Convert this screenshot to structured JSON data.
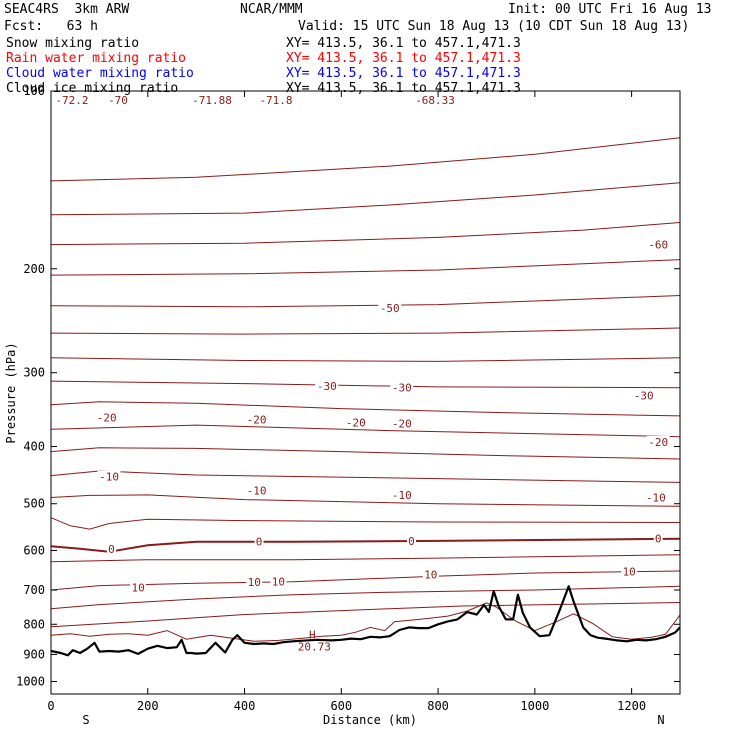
{
  "header": {
    "model": "SEAC4RS  3km ARW",
    "org": "NCAR/MMM",
    "init": "Init: 00 UTC Fri 16 Aug 13",
    "fcst": "Fcst:   63 h",
    "valid": "Valid: 15 UTC Sun 18 Aug 13 (10 CDT Sun 18 Aug 13)"
  },
  "fields": [
    {
      "name": "Snow mixing ratio",
      "xy": "XY= 413.5, 36.1 to 457.1,471.3",
      "color": "#000000"
    },
    {
      "name": "Rain water mixing ratio",
      "xy": "XY= 413.5, 36.1 to 457.1,471.3",
      "color": "#ff0000"
    },
    {
      "name": "Cloud water mixing ratio",
      "xy": "XY= 413.5, 36.1 to 457.1,471.3",
      "color": "#0000ff"
    },
    {
      "name": "Cloud ice mixing ratio",
      "xy": "XY= 413.5, 36.1 to 457.1,471.3",
      "color": "#000000"
    }
  ],
  "colors": {
    "isotherm": "#8b1a1a",
    "zero_isotherm": "#8b1a1a",
    "terrain": "#000000",
    "axis": "#000000"
  },
  "chart_data": {
    "type": "line",
    "xlabel": "Distance (km)",
    "ylabel": "Pressure (hPa)",
    "xlim": [
      0,
      1300
    ],
    "ylim": [
      1050,
      100
    ],
    "yscale": "log",
    "x_ticks": [
      "0",
      "200",
      "400",
      "600",
      "800",
      "1000",
      "1200"
    ],
    "y_ticks": [
      "100",
      "200",
      "300",
      "400",
      "500",
      "600",
      "700",
      "800",
      "900",
      "1000"
    ],
    "x_end_labels": {
      "left": "S",
      "right": "N"
    },
    "high_marker": {
      "symbol": "H",
      "value": "20.73",
      "x": 540,
      "p": 833
    },
    "top_labels": [
      "-72.2",
      "-70",
      "-71.88",
      "-71.8",
      "-68.33"
    ],
    "contour_labels": [
      {
        "text": "-60",
        "x": 1255,
        "p": 182
      },
      {
        "text": "-50",
        "x": 700,
        "p": 233
      },
      {
        "text": "-30",
        "x": 570,
        "p": 316
      },
      {
        "text": "-30",
        "x": 725,
        "p": 318
      },
      {
        "text": "-30",
        "x": 1225,
        "p": 328
      },
      {
        "text": "-20",
        "x": 115,
        "p": 357
      },
      {
        "text": "-20",
        "x": 425,
        "p": 360
      },
      {
        "text": "-20",
        "x": 630,
        "p": 364
      },
      {
        "text": "-20",
        "x": 725,
        "p": 366
      },
      {
        "text": "-20",
        "x": 1255,
        "p": 393
      },
      {
        "text": "-10",
        "x": 120,
        "p": 450
      },
      {
        "text": "-10",
        "x": 425,
        "p": 475
      },
      {
        "text": "-10",
        "x": 725,
        "p": 483
      },
      {
        "text": "-10",
        "x": 1250,
        "p": 488
      },
      {
        "text": "0",
        "x": 125,
        "p": 597
      },
      {
        "text": "0",
        "x": 430,
        "p": 579
      },
      {
        "text": "0",
        "x": 745,
        "p": 578
      },
      {
        "text": "0",
        "x": 1255,
        "p": 573
      },
      {
        "text": "10",
        "x": 180,
        "p": 693
      },
      {
        "text": "10",
        "x": 420,
        "p": 679
      },
      {
        "text": "10",
        "x": 470,
        "p": 677
      },
      {
        "text": "10",
        "x": 785,
        "p": 659
      },
      {
        "text": "10",
        "x": 1195,
        "p": 651
      }
    ],
    "isotherms": [
      {
        "level": "-70",
        "x": [
          0,
          300,
          700,
          1000,
          1300
        ],
        "p": [
          142,
          140,
          134,
          128,
          120
        ]
      },
      {
        "level": "-65",
        "x": [
          0,
          400,
          700,
          1000,
          1300
        ],
        "p": [
          162,
          161,
          156,
          150,
          143
        ]
      },
      {
        "level": "-60",
        "x": [
          0,
          400,
          800,
          1100,
          1300
        ],
        "p": [
          182,
          181,
          177,
          172,
          167
        ]
      },
      {
        "level": "-55",
        "x": [
          0,
          400,
          800,
          1300
        ],
        "p": [
          205,
          204,
          201,
          193
        ]
      },
      {
        "level": "-50",
        "x": [
          0,
          400,
          800,
          1300
        ],
        "p": [
          231,
          232,
          230,
          222
        ]
      },
      {
        "level": "-45",
        "x": [
          0,
          400,
          800,
          1300
        ],
        "p": [
          257,
          258,
          257,
          252
        ]
      },
      {
        "level": "-40",
        "x": [
          0,
          400,
          800,
          1300
        ],
        "p": [
          283,
          286,
          287,
          283
        ]
      },
      {
        "level": "-35",
        "x": [
          0,
          400,
          800,
          1300
        ],
        "p": [
          310,
          313,
          317,
          318
        ]
      },
      {
        "level": "-30",
        "x": [
          0,
          100,
          300,
          600,
          900,
          1300
        ],
        "p": [
          340,
          336,
          338,
          345,
          350,
          355
        ]
      },
      {
        "level": "-25",
        "x": [
          0,
          300,
          700,
          1300
        ],
        "p": [
          374,
          368,
          376,
          385
        ]
      },
      {
        "level": "-20",
        "x": [
          0,
          100,
          300,
          600,
          900,
          1300
        ],
        "p": [
          408,
          402,
          403,
          408,
          414,
          420
        ]
      },
      {
        "level": "-15",
        "x": [
          0,
          100,
          300,
          700,
          1300
        ],
        "p": [
          448,
          440,
          447,
          452,
          460
        ]
      },
      {
        "level": "-10",
        "x": [
          0,
          80,
          200,
          400,
          800,
          1300
        ],
        "p": [
          488,
          484,
          483,
          492,
          500,
          505
        ]
      },
      {
        "level": "-5",
        "x": [
          0,
          40,
          80,
          120,
          200,
          400,
          800,
          1300
        ],
        "p": [
          528,
          545,
          552,
          540,
          531,
          534,
          537,
          538
        ]
      },
      {
        "level": "0",
        "x": [
          0,
          60,
          120,
          200,
          300,
          500,
          800,
          1100,
          1300
        ],
        "p": [
          590,
          596,
          603,
          588,
          580,
          580,
          578,
          575,
          573
        ],
        "bold": true
      },
      {
        "level": "5",
        "x": [
          0,
          200,
          500,
          800,
          1300
        ],
        "p": [
          627,
          622,
          622,
          618,
          610
        ]
      },
      {
        "level": "10",
        "x": [
          0,
          100,
          300,
          500,
          800,
          1000,
          1300
        ],
        "p": [
          700,
          688,
          682,
          678,
          663,
          655,
          650
        ]
      },
      {
        "level": "15",
        "x": [
          0,
          100,
          300,
          500,
          700,
          1000,
          1300
        ],
        "p": [
          753,
          741,
          725,
          713,
          706,
          700,
          690
        ]
      },
      {
        "level": "20",
        "x": [
          0,
          200,
          400,
          700,
          850,
          1300
        ],
        "p": [
          808,
          790,
          770,
          753,
          745,
          735
        ]
      }
    ],
    "surface_isotherm": {
      "level": "25",
      "x": [
        0,
        40,
        80,
        120,
        160,
        200,
        240,
        280,
        330,
        380,
        420,
        470,
        520,
        560,
        600,
        630,
        660,
        690,
        710,
        740,
        780,
        820,
        860,
        900,
        920,
        960,
        1000,
        1040,
        1080,
        1120,
        1160,
        1200,
        1240,
        1270,
        1300
      ],
      "p": [
        835,
        830,
        838,
        832,
        830,
        835,
        820,
        848,
        835,
        846,
        855,
        852,
        845,
        838,
        835,
        825,
        810,
        820,
        792,
        788,
        782,
        775,
        760,
        736,
        748,
        790,
        820,
        795,
        768,
        798,
        840,
        848,
        842,
        832,
        772
      ]
    },
    "terrain": {
      "x": [
        0,
        20,
        35,
        45,
        60,
        75,
        90,
        100,
        120,
        140,
        160,
        180,
        200,
        220,
        240,
        260,
        270,
        280,
        290,
        300,
        320,
        340,
        360,
        375,
        385,
        400,
        420,
        440,
        460,
        480,
        500,
        520,
        550,
        580,
        600,
        620,
        640,
        660,
        680,
        700,
        720,
        740,
        760,
        780,
        800,
        820,
        840,
        860,
        880,
        895,
        905,
        915,
        925,
        940,
        955,
        965,
        975,
        990,
        1010,
        1030,
        1050,
        1060,
        1070,
        1080,
        1090,
        1100,
        1115,
        1130,
        1150,
        1170,
        1190,
        1210,
        1230,
        1250,
        1270,
        1290,
        1300
      ],
      "p": [
        888,
        895,
        903,
        885,
        895,
        880,
        860,
        890,
        888,
        890,
        885,
        898,
        880,
        870,
        878,
        875,
        850,
        895,
        895,
        897,
        895,
        860,
        893,
        850,
        835,
        860,
        864,
        862,
        864,
        858,
        855,
        853,
        850,
        852,
        850,
        846,
        848,
        840,
        842,
        838,
        818,
        810,
        812,
        812,
        800,
        791,
        785,
        763,
        770,
        742,
        762,
        703,
        745,
        785,
        785,
        713,
        765,
        810,
        838,
        835,
        762,
        725,
        690,
        732,
        770,
        810,
        835,
        843,
        847,
        852,
        855,
        850,
        852,
        848,
        840,
        826,
        810
      ]
    }
  }
}
